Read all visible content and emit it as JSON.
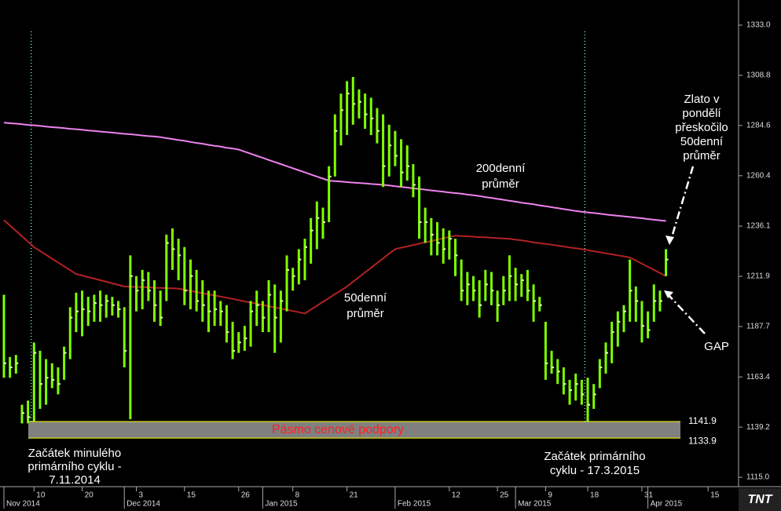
{
  "chart_data": {
    "type": "ohlc",
    "categories": [
      null,
      null,
      null,
      null,
      null,
      "10",
      null,
      null,
      null,
      null,
      null,
      null,
      null,
      "20",
      null,
      null,
      null,
      null,
      null,
      null,
      null,
      null,
      "3",
      null,
      null,
      null,
      null,
      null,
      null,
      null,
      "15",
      null,
      null,
      null,
      null,
      null,
      null,
      null,
      null,
      "26",
      null,
      null,
      null,
      null,
      null,
      null,
      null,
      null,
      "8",
      null,
      null,
      null,
      null,
      null,
      null,
      null,
      null,
      "21",
      null,
      null,
      null,
      null,
      null,
      null,
      null,
      null,
      null,
      null,
      null,
      null,
      null,
      null,
      null,
      null,
      "12",
      null,
      null,
      null,
      null,
      null,
      null,
      null,
      "25",
      null,
      null,
      null,
      null,
      null,
      null,
      null,
      "9",
      null,
      null,
      null,
      null,
      null,
      null,
      "18",
      null,
      null,
      null,
      null,
      null,
      null,
      null,
      null,
      "31",
      null,
      null,
      null,
      null,
      null,
      null,
      null,
      null,
      null,
      null,
      "15"
    ],
    "months": [
      "Nov 2014",
      null,
      null,
      null,
      null,
      null,
      null,
      null,
      null,
      null,
      null,
      null,
      null,
      null,
      null,
      null,
      null,
      null,
      null,
      null,
      "Dec 2014",
      null,
      null,
      null,
      null,
      null,
      null,
      null,
      null,
      null,
      null,
      null,
      null,
      null,
      null,
      null,
      null,
      null,
      null,
      null,
      null,
      null,
      null,
      "Jan 2015",
      null,
      null,
      null,
      null,
      null,
      null,
      null,
      null,
      null,
      null,
      null,
      null,
      null,
      null,
      null,
      null,
      null,
      null,
      null,
      null,
      null,
      "Feb 2015",
      null,
      null,
      null,
      null,
      null,
      null,
      null,
      null,
      null,
      null,
      null,
      null,
      null,
      null,
      null,
      null,
      null,
      null,
      null,
      "Mar 2015",
      null,
      null,
      null,
      null,
      null,
      null,
      null,
      null,
      null,
      null,
      null,
      null,
      null,
      null,
      null,
      null,
      null,
      null,
      null,
      null,
      null,
      "Apr 2015",
      null,
      null,
      null,
      null,
      null,
      null,
      null,
      null,
      null,
      null
    ],
    "high": [
      1203,
      1173,
      1174,
      1150,
      1152,
      1180,
      1176,
      1172,
      1170,
      1168,
      1178,
      1197,
      1204,
      1205,
      1202,
      1203,
      1205,
      1203,
      1202,
      1200,
      1197,
      1222,
      1212,
      1215,
      1214,
      1210,
      1205,
      1232,
      1235,
      1230,
      1226,
      1220,
      1215,
      1210,
      1205,
      1205,
      1200,
      1198,
      1190,
      1185,
      1188,
      1200,
      1205,
      1200,
      1210,
      1208,
      1205,
      1222,
      1216,
      1225,
      1230,
      1240,
      1248,
      1245,
      1265,
      1290,
      1300,
      1306,
      1308,
      1302,
      1300,
      1298,
      1293,
      1290,
      1285,
      1282,
      1278,
      1275,
      1266,
      1260,
      1245,
      1240,
      1238,
      1235,
      1234,
      1230,
      1220,
      1214,
      1212,
      1210,
      1215,
      1214,
      1205,
      1212,
      1222,
      1216,
      1213,
      1215,
      1208,
      1202,
      1190,
      1176,
      1172,
      1168,
      1162,
      1165,
      1162,
      1163,
      1160,
      1172,
      1180,
      1190,
      1195,
      1198,
      1220,
      1207,
      1200,
      1195,
      1208,
      1205,
      1225,
      null,
      null,
      null,
      null,
      null,
      null,
      null
    ],
    "low": [
      1163,
      1163,
      1165,
      1141,
      1141,
      1142,
      1148,
      1150,
      1158,
      1155,
      1162,
      1172,
      1185,
      1183,
      1188,
      1190,
      1190,
      1192,
      1193,
      1192,
      1168,
      1143,
      1195,
      1196,
      1200,
      1190,
      1188,
      1200,
      1215,
      1210,
      1198,
      1196,
      1195,
      1190,
      1185,
      1188,
      1188,
      1180,
      1172,
      1175,
      1176,
      1178,
      1188,
      1185,
      1185,
      1175,
      1180,
      1195,
      1205,
      1208,
      1210,
      1218,
      1225,
      1230,
      1238,
      1260,
      1275,
      1280,
      1285,
      1288,
      1283,
      1280,
      1276,
      1255,
      1260,
      1265,
      1255,
      1258,
      1250,
      1230,
      1228,
      1222,
      1222,
      1218,
      1220,
      1212,
      1200,
      1198,
      1200,
      1192,
      1200,
      1198,
      1190,
      1198,
      1200,
      1200,
      1202,
      1200,
      1190,
      1195,
      1162,
      1165,
      1160,
      1155,
      1150,
      1152,
      1150,
      1142,
      1148,
      1158,
      1165,
      1170,
      1178,
      1185,
      1190,
      1190,
      1180,
      1182,
      1190,
      1195,
      1212,
      null,
      null,
      null,
      null,
      null,
      null,
      null
    ],
    "close": [
      1170,
      1168,
      1170,
      1146,
      1144,
      1175,
      1160,
      1163,
      1162,
      1160,
      1175,
      1192,
      1195,
      1196,
      1195,
      1199,
      1198,
      1200,
      1198,
      1196,
      1176,
      1212,
      1205,
      1210,
      1205,
      1198,
      1192,
      1228,
      1225,
      1222,
      1205,
      1212,
      1200,
      1198,
      1195,
      1196,
      1195,
      1185,
      1176,
      1180,
      1182,
      1195,
      1198,
      1192,
      1203,
      1192,
      1200,
      1215,
      1212,
      1220,
      1226,
      1234,
      1240,
      1238,
      1260,
      1282,
      1292,
      1300,
      1295,
      1296,
      1290,
      1288,
      1282,
      1265,
      1275,
      1270,
      1262,
      1265,
      1256,
      1238,
      1238,
      1232,
      1228,
      1225,
      1230,
      1222,
      1205,
      1208,
      1205,
      1198,
      1208,
      1205,
      1198,
      1205,
      1212,
      1208,
      1210,
      1205,
      1200,
      1198,
      1170,
      1168,
      1166,
      1160,
      1157,
      1160,
      1155,
      1150,
      1155,
      1168,
      1175,
      1185,
      1190,
      1195,
      1205,
      1200,
      1188,
      1186,
      1200,
      1200,
      1220,
      null,
      null,
      null,
      null,
      null,
      null,
      null
    ],
    "bar_color": "#7fff00",
    "close_color": "#e8ffd0",
    "lines": [
      {
        "color": "#ee82ee",
        "values": [
          1286,
          1285.7,
          1285.5,
          1285.2,
          1284.9,
          1284.7,
          1284.4,
          1284.1,
          1283.8,
          1283.6,
          1283.3,
          1283,
          1282.8,
          1282.5,
          1282.2,
          1282,
          1281.7,
          1281.4,
          1281.2,
          1280.9,
          1280.6,
          1280.4,
          1280.1,
          1279.8,
          1279.5,
          1279.3,
          1279,
          1278.5,
          1278.1,
          1277.6,
          1277.2,
          1276.7,
          1276.2,
          1275.8,
          1275.3,
          1274.8,
          1274.4,
          1273.9,
          1273.5,
          1273,
          1272,
          1271,
          1270,
          1269,
          1268,
          1267,
          1266,
          1265,
          1264,
          1263,
          1262,
          1261,
          1260,
          1259,
          1258,
          1257.8,
          1257.6,
          1257.3,
          1257.1,
          1256.9,
          1256.7,
          1256.4,
          1256.2,
          1256,
          1255.7,
          1255.3,
          1255,
          1254.7,
          1254.3,
          1254,
          1253.7,
          1253.3,
          1253,
          1252.7,
          1252.3,
          1252,
          1251.7,
          1251.3,
          1251,
          1250.6,
          1250.1,
          1249.7,
          1249.2,
          1248.8,
          1248.3,
          1247.9,
          1247.4,
          1247,
          1246.6,
          1246.1,
          1245.7,
          1245.2,
          1244.8,
          1244.3,
          1243.9,
          1243.4,
          1243,
          1242.7,
          1242.4,
          1242.1,
          1241.7,
          1241.4,
          1241.1,
          1240.8,
          1240.5,
          1240.2,
          1239.9,
          1239.5,
          1239.2,
          1238.9,
          1238.6,
          null,
          null,
          null,
          null,
          null,
          null,
          null
        ]
      },
      {
        "color": "#b22222",
        "values": [
          1239,
          1236.4,
          1233.8,
          1231.2,
          1228.6,
          1226,
          1224.1,
          1222.3,
          1220.4,
          1218.6,
          1216.7,
          1214.9,
          1213,
          1212.3,
          1211.5,
          1210.8,
          1210,
          1209.3,
          1208.5,
          1207.8,
          1207,
          1206.9,
          1206.8,
          1206.7,
          1206.6,
          1206.4,
          1206.3,
          1206.2,
          1206.1,
          1206,
          1205.4,
          1204.9,
          1204.3,
          1203.8,
          1203.2,
          1202.7,
          1202.1,
          1201.6,
          1201,
          1200.4,
          1199.8,
          1199.3,
          1198.7,
          1198.1,
          1197.5,
          1196.9,
          1196.3,
          1195.8,
          1195.2,
          1194.6,
          1194,
          1195.9,
          1197.7,
          1199.6,
          1201.4,
          1203.3,
          1205.1,
          1207,
          1209.3,
          1211.5,
          1213.8,
          1216,
          1218.3,
          1220.5,
          1222.8,
          1225,
          1225.7,
          1226.3,
          1227,
          1227.6,
          1228.3,
          1228.9,
          1229.6,
          1230.2,
          1230.9,
          1231.5,
          1231.3,
          1231.2,
          1231,
          1230.8,
          1230.7,
          1230.5,
          1230.3,
          1230.2,
          1230,
          1229.6,
          1229.2,
          1228.8,
          1228.3,
          1227.9,
          1227.5,
          1227.1,
          1226.7,
          1226.3,
          1225.8,
          1225.4,
          1225,
          1224.5,
          1224,
          1223.5,
          1223,
          1222.5,
          1222,
          1221.5,
          1221,
          1219.5,
          1218,
          1216.5,
          1215,
          1213.5,
          1212,
          null,
          null,
          null,
          null,
          null,
          null,
          null
        ]
      }
    ],
    "ylim": [
      1110.5,
      1345.1
    ],
    "yticks": [
      {
        "value": 1115.0,
        "label": "1115.0"
      },
      {
        "value": 1139.2,
        "label": "1139.2"
      },
      {
        "value": 1163.4,
        "label": "1163.4"
      },
      {
        "value": 1187.7,
        "label": "1187.7"
      },
      {
        "value": 1211.9,
        "label": "1211.9"
      },
      {
        "value": 1236.1,
        "label": "1236.1"
      },
      {
        "value": 1260.4,
        "label": "1260.4"
      },
      {
        "value": 1284.6,
        "label": "1284.6"
      },
      {
        "value": 1308.8,
        "label": "1308.8"
      },
      {
        "value": 1333.0,
        "label": "1333.0"
      }
    ],
    "support_band": {
      "low": 1133.9,
      "high": 1141.9,
      "label": "Pásmo cenové podpory",
      "color": "#808080",
      "edge_color": "#ffff00",
      "label_color": "#ff2020"
    },
    "markers": [
      4,
      96
    ],
    "marker_color": "#7fe0e0",
    "ma200_label": [
      "200denní",
      "průměr"
    ],
    "ma50_label": [
      "50denní",
      "průměr"
    ],
    "note_left": [
      "Začátek minulého",
      "primárního cyklu -",
      "7.11.2014"
    ],
    "note_right": [
      "Začátek primárního",
      "cyklu - 17.3.2015"
    ],
    "note_jump": [
      "Zlato v",
      "pondělí",
      "přeskočilo",
      "50denní",
      "průměr"
    ],
    "note_gap": "GAP",
    "logo": "TNT"
  }
}
